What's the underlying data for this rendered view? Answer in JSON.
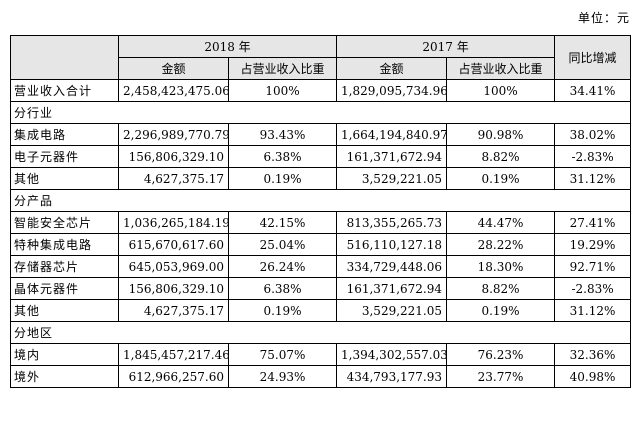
{
  "unit_label": "单位：元",
  "header": {
    "year_2018": "2018 年",
    "year_2017": "2017 年",
    "amount": "金额",
    "share": "占营业收入比重",
    "yoy": "同比增减"
  },
  "rows": [
    {
      "type": "data",
      "label": "营业收入合计",
      "amt2018": "2,458,423,475.06",
      "pct2018": "100%",
      "amt2017": "1,829,095,734.96",
      "pct2017": "100%",
      "yoy": "34.41%"
    },
    {
      "type": "section",
      "label": "分行业"
    },
    {
      "type": "data",
      "label": "集成电路",
      "amt2018": "2,296,989,770.79",
      "pct2018": "93.43%",
      "amt2017": "1,664,194,840.97",
      "pct2017": "90.98%",
      "yoy": "38.02%"
    },
    {
      "type": "data",
      "label": "电子元器件",
      "amt2018": "156,806,329.10",
      "pct2018": "6.38%",
      "amt2017": "161,371,672.94",
      "pct2017": "8.82%",
      "yoy": "-2.83%"
    },
    {
      "type": "data",
      "label": "其他",
      "amt2018": "4,627,375.17",
      "pct2018": "0.19%",
      "amt2017": "3,529,221.05",
      "pct2017": "0.19%",
      "yoy": "31.12%"
    },
    {
      "type": "section",
      "label": "分产品"
    },
    {
      "type": "data",
      "label": "智能安全芯片",
      "amt2018": "1,036,265,184.19",
      "pct2018": "42.15%",
      "amt2017": "813,355,265.73",
      "pct2017": "44.47%",
      "yoy": "27.41%"
    },
    {
      "type": "data",
      "label": "特种集成电路",
      "amt2018": "615,670,617.60",
      "pct2018": "25.04%",
      "amt2017": "516,110,127.18",
      "pct2017": "28.22%",
      "yoy": "19.29%"
    },
    {
      "type": "data",
      "label": "存储器芯片",
      "amt2018": "645,053,969.00",
      "pct2018": "26.24%",
      "amt2017": "334,729,448.06",
      "pct2017": "18.30%",
      "yoy": "92.71%"
    },
    {
      "type": "data",
      "label": "晶体元器件",
      "amt2018": "156,806,329.10",
      "pct2018": "6.38%",
      "amt2017": "161,371,672.94",
      "pct2017": "8.82%",
      "yoy": "-2.83%"
    },
    {
      "type": "data",
      "label": "其他",
      "amt2018": "4,627,375.17",
      "pct2018": "0.19%",
      "amt2017": "3,529,221.05",
      "pct2017": "0.19%",
      "yoy": "31.12%"
    },
    {
      "type": "section",
      "label": "分地区"
    },
    {
      "type": "data",
      "label": "境内",
      "amt2018": "1,845,457,217.46",
      "pct2018": "75.07%",
      "amt2017": "1,394,302,557.03",
      "pct2017": "76.23%",
      "yoy": "32.36%"
    },
    {
      "type": "data",
      "label": "境外",
      "amt2018": "612,966,257.60",
      "pct2018": "24.93%",
      "amt2017": "434,793,177.93",
      "pct2017": "23.77%",
      "yoy": "40.98%"
    }
  ]
}
